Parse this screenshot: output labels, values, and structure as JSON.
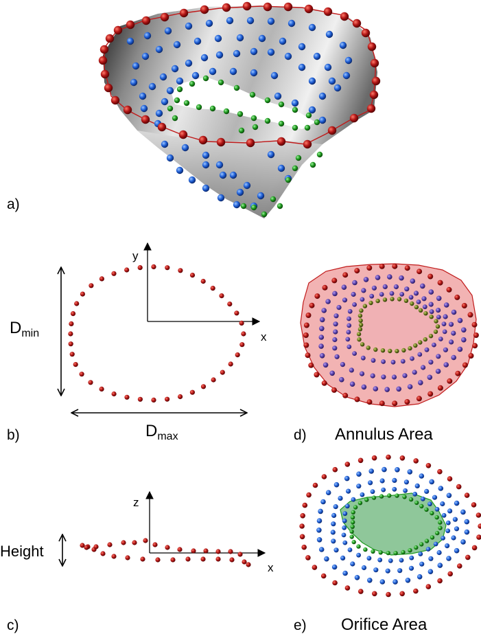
{
  "panels": {
    "a": {
      "label": "a)"
    },
    "b": {
      "label": "b)",
      "axis_x": "x",
      "axis_y": "y",
      "dmin_base": "D",
      "dmin_sub": "min",
      "dmax_base": "D",
      "dmax_sub": "max"
    },
    "c": {
      "label": "c)",
      "axis_x": "x",
      "axis_z": "z",
      "height_label": "Height"
    },
    "d": {
      "label": "d)",
      "caption": "Annulus Area"
    },
    "e": {
      "label": "e)",
      "caption": "Orifice Area"
    }
  },
  "colors": {
    "annulus_points": "#a01010",
    "leaflet_points": "#1f5fd6",
    "orifice_points": "#1f9a1f",
    "annulus_area_fill": "#f2b3b3",
    "orifice_area_fill": "#8fc79a",
    "surface_gray": "#b8b8b8"
  }
}
